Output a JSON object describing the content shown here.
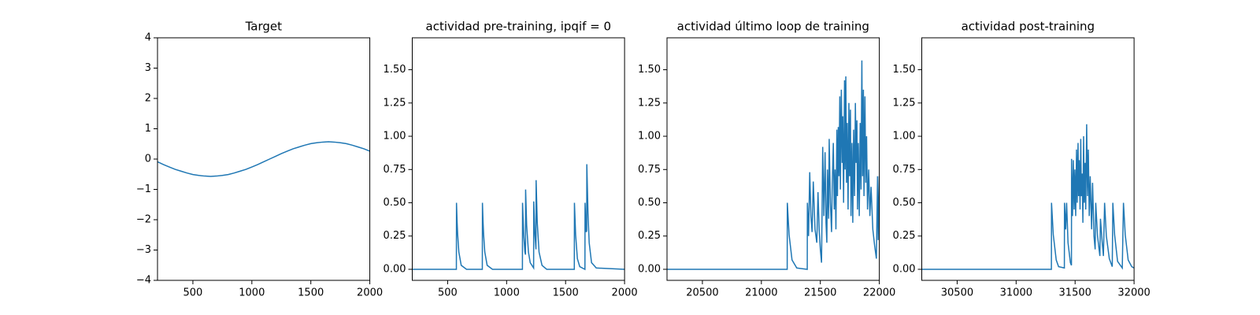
{
  "chart_data": [
    {
      "type": "line",
      "title": "Target",
      "color": "#1f77b4",
      "xlim": [
        200,
        2000
      ],
      "xticks": [
        500,
        1000,
        1500,
        2000
      ],
      "ylim": [
        -4,
        4
      ],
      "yticks": [
        {
          "value": -4,
          "label": "−4"
        },
        {
          "value": -3,
          "label": "−3"
        },
        {
          "value": -2,
          "label": "−2"
        },
        {
          "value": -1,
          "label": "−1"
        },
        0,
        1,
        2,
        3,
        4
      ],
      "x": [
        200,
        250,
        300,
        350,
        400,
        450,
        500,
        550,
        600,
        650,
        700,
        750,
        800,
        850,
        900,
        950,
        1000,
        1050,
        1100,
        1150,
        1200,
        1250,
        1300,
        1350,
        1400,
        1450,
        1500,
        1550,
        1600,
        1650,
        1700,
        1750,
        1800,
        1850,
        1900,
        1950,
        2000
      ],
      "values": [
        -0.09,
        -0.18,
        -0.26,
        -0.34,
        -0.4,
        -0.46,
        -0.51,
        -0.54,
        -0.56,
        -0.57,
        -0.56,
        -0.54,
        -0.51,
        -0.46,
        -0.4,
        -0.34,
        -0.26,
        -0.18,
        -0.09,
        0,
        0.09,
        0.18,
        0.26,
        0.34,
        0.4,
        0.46,
        0.51,
        0.54,
        0.56,
        0.57,
        0.56,
        0.54,
        0.51,
        0.46,
        0.4,
        0.34,
        0.26
      ]
    },
    {
      "type": "line",
      "title": "actividad pre-training, ipqif = 0",
      "color": "#1f77b4",
      "xlim": [
        200,
        2000
      ],
      "xticks": [
        500,
        1000,
        1500,
        2000
      ],
      "ylim": [
        -0.083,
        1.74
      ],
      "yticks": [
        {
          "value": 0,
          "label": "0.00"
        },
        {
          "value": 0.25,
          "label": "0.25"
        },
        {
          "value": 0.5,
          "label": "0.50"
        },
        {
          "value": 0.75,
          "label": "0.75"
        },
        {
          "value": 1,
          "label": "1.00"
        },
        {
          "value": 1.25,
          "label": "1.25"
        },
        {
          "value": 1.5,
          "label": "1.50"
        }
      ],
      "x": [
        200,
        574,
        575,
        580,
        585,
        595,
        615,
        660,
        794,
        795,
        800,
        805,
        815,
        835,
        880,
        1134,
        1135,
        1145,
        1155,
        1160,
        1161,
        1170,
        1185,
        1200,
        1229,
        1230,
        1240,
        1249,
        1250,
        1260,
        1275,
        1300,
        1340,
        1574,
        1575,
        1585,
        1600,
        1620,
        1664,
        1665,
        1675,
        1679,
        1680,
        1690,
        1700,
        1720,
        1760,
        2000
      ],
      "values": [
        0,
        0,
        0.5,
        0.36,
        0.26,
        0.13,
        0.03,
        0,
        0,
        0.5,
        0.36,
        0.26,
        0.13,
        0.03,
        0,
        0,
        0.5,
        0.26,
        0.13,
        0.11,
        0.6,
        0.33,
        0.13,
        0.05,
        0.01,
        0.51,
        0.26,
        0.15,
        0.67,
        0.35,
        0.13,
        0.03,
        0,
        0,
        0.5,
        0.26,
        0.08,
        0.02,
        0,
        0.5,
        0.28,
        0.29,
        0.79,
        0.42,
        0.2,
        0.05,
        0.01,
        0
      ]
    },
    {
      "type": "line",
      "title": "actividad último loop de training",
      "color": "#1f77b4",
      "xlim": [
        20200,
        22000
      ],
      "xticks": [
        20500,
        21000,
        21500,
        22000
      ],
      "ylim": [
        -0.083,
        1.74
      ],
      "yticks": [
        {
          "value": 0,
          "label": "0.00"
        },
        {
          "value": 0.25,
          "label": "0.25"
        },
        {
          "value": 0.5,
          "label": "0.50"
        },
        {
          "value": 0.75,
          "label": "0.75"
        },
        {
          "value": 1,
          "label": "1.00"
        },
        {
          "value": 1.25,
          "label": "1.25"
        },
        {
          "value": 1.5,
          "label": "1.50"
        }
      ],
      "x": [
        20200,
        21219,
        21220,
        21235,
        21260,
        21300,
        21389,
        21390,
        21400,
        21410,
        21420,
        21430,
        21440,
        21455,
        21470,
        21480,
        21490,
        21500,
        21510,
        21515,
        21520,
        21530,
        21540,
        21548,
        21555,
        21560,
        21570,
        21575,
        21585,
        21595,
        21600,
        21610,
        21618,
        21625,
        21632,
        21640,
        21645,
        21652,
        21658,
        21665,
        21670,
        21678,
        21685,
        21690,
        21697,
        21705,
        21710,
        21716,
        21722,
        21728,
        21735,
        21742,
        21748,
        21755,
        21760,
        21768,
        21775,
        21782,
        21790,
        21797,
        21803,
        21810,
        21815,
        21822,
        21830,
        21838,
        21845,
        21852,
        21858,
        21865,
        21870,
        21878,
        21885,
        21892,
        21900,
        21910,
        21920,
        21930,
        21945,
        21960,
        21975,
        21985,
        21990,
        22000
      ],
      "values": [
        0,
        0,
        0.5,
        0.26,
        0.07,
        0.01,
        0,
        0.5,
        0.25,
        0.73,
        0.4,
        0.28,
        0.66,
        0.3,
        0.2,
        0.58,
        0.3,
        0.15,
        0.05,
        0.47,
        0.92,
        0.4,
        0.88,
        0.35,
        0.2,
        0.75,
        0.38,
        0.98,
        0.5,
        0.28,
        0.6,
        0.95,
        0.45,
        0.75,
        0.3,
        1.05,
        0.55,
        1.07,
        0.7,
        1.3,
        0.6,
        1.35,
        0.8,
        1.15,
        0.5,
        1.42,
        0.75,
        1.45,
        0.65,
        1.1,
        0.45,
        1.25,
        0.7,
        1.2,
        0.4,
        0.95,
        0.35,
        1.05,
        0.55,
        1.25,
        0.8,
        1.12,
        0.45,
        0.95,
        0.4,
        1.1,
        0.6,
        1.57,
        0.7,
        1.35,
        0.55,
        1.3,
        0.65,
        1.0,
        0.45,
        0.75,
        0.4,
        0.62,
        0.3,
        0.18,
        0.08,
        0.7,
        0.22,
        0.7
      ]
    },
    {
      "type": "line",
      "title": "actividad post-training",
      "color": "#1f77b4",
      "xlim": [
        30200,
        32000
      ],
      "xticks": [
        30500,
        31000,
        31500,
        32000
      ],
      "ylim": [
        -0.083,
        1.74
      ],
      "yticks": [
        {
          "value": 0,
          "label": "0.00"
        },
        {
          "value": 0.25,
          "label": "0.25"
        },
        {
          "value": 0.5,
          "label": "0.50"
        },
        {
          "value": 0.75,
          "label": "0.75"
        },
        {
          "value": 1,
          "label": "1.00"
        },
        {
          "value": 1.25,
          "label": "1.25"
        },
        {
          "value": 1.5,
          "label": "1.50"
        }
      ],
      "x": [
        30200,
        31299,
        31300,
        31315,
        31340,
        31360,
        31409,
        31410,
        31420,
        31428,
        31440,
        31460,
        31469,
        31470,
        31478,
        31485,
        31492,
        31498,
        31505,
        31512,
        31518,
        31525,
        31530,
        31535,
        31542,
        31548,
        31553,
        31560,
        31566,
        31572,
        31578,
        31585,
        31590,
        31598,
        31605,
        31612,
        31620,
        31628,
        31640,
        31648,
        31660,
        31670,
        31675,
        31690,
        31710,
        31715,
        31730,
        31740,
        31750,
        31765,
        31790,
        31815,
        31820,
        31835,
        31860,
        31900,
        31910,
        31925,
        31950,
        31980,
        32000
      ],
      "values": [
        0,
        0,
        0.5,
        0.26,
        0.07,
        0.02,
        0.01,
        0.5,
        0.3,
        0.5,
        0.2,
        0.05,
        0.03,
        0.83,
        0.4,
        0.82,
        0.45,
        0.75,
        0.4,
        0.9,
        0.5,
        0.95,
        0.55,
        0.82,
        0.45,
        0.98,
        0.55,
        0.72,
        0.35,
        1.0,
        0.5,
        0.8,
        0.45,
        1.09,
        0.55,
        0.9,
        0.4,
        0.7,
        0.3,
        0.65,
        0.25,
        0.15,
        0.5,
        0.25,
        0.1,
        0.38,
        0.2,
        0.1,
        0.5,
        0.25,
        0.08,
        0.02,
        0.5,
        0.26,
        0.06,
        0.01,
        0.5,
        0.26,
        0.07,
        0.02,
        0.01
      ]
    }
  ]
}
